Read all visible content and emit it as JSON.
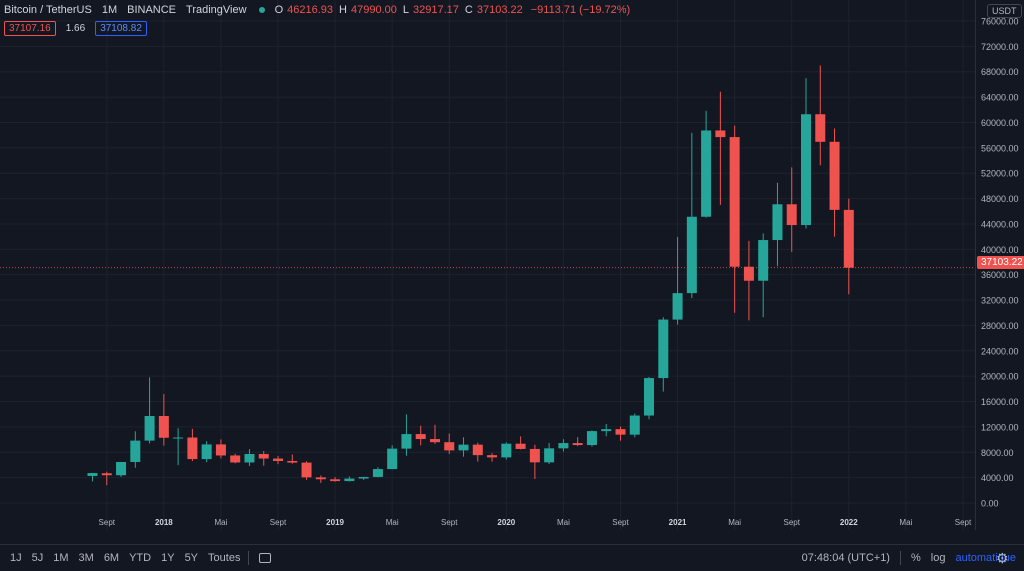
{
  "legend": {
    "symbol": "Bitcoin / TetherUS",
    "interval": "1M",
    "exchange": "BINANCE",
    "source": "TradingView",
    "o_label": "O",
    "o_value": "46216.93",
    "h_label": "H",
    "h_value": "47990.00",
    "l_label": "L",
    "l_value": "32917.17",
    "c_label": "C",
    "c_value": "37103.22",
    "change": "−9113.71 (−19.72%)"
  },
  "badges": {
    "bid": "37107.16",
    "spread": "1.66",
    "ask": "37108.82"
  },
  "currency": "USDT",
  "current_price": "37103.22",
  "colors": {
    "up": "#26a69a",
    "down": "#ef5350",
    "background": "#131722",
    "grid": "#1e222d",
    "accent": "#2962ff"
  },
  "bottom_bar": {
    "ranges": [
      "1J",
      "5J",
      "1M",
      "3M",
      "6M",
      "YTD",
      "1Y",
      "5Y",
      "Toutes"
    ],
    "calendar_icon": "calendar-range-icon",
    "time": "07:48:04 (UTC+1)",
    "percent": "%",
    "log": "log",
    "auto": "automatique",
    "settings_icon": "gear-icon"
  },
  "chart_data": {
    "type": "candlestick",
    "y_ticks": [
      "0.00",
      "4000.00",
      "8000.00",
      "12000.00",
      "16000.00",
      "20000.00",
      "24000.00",
      "28000.00",
      "32000.00",
      "36000.00",
      "40000.00",
      "44000.00",
      "48000.00",
      "52000.00",
      "56000.00",
      "60000.00",
      "64000.00",
      "68000.00",
      "72000.00",
      "76000.00"
    ],
    "ylim": [
      0,
      76000
    ],
    "x_ticks": [
      {
        "i": 1,
        "label": "Sept"
      },
      {
        "i": 5,
        "label": "2018"
      },
      {
        "i": 9,
        "label": "Mai"
      },
      {
        "i": 13,
        "label": "Sept"
      },
      {
        "i": 17,
        "label": "2019"
      },
      {
        "i": 21,
        "label": "Mai"
      },
      {
        "i": 25,
        "label": "Sept"
      },
      {
        "i": 29,
        "label": "2020"
      },
      {
        "i": 33,
        "label": "Mai"
      },
      {
        "i": 37,
        "label": "Sept"
      },
      {
        "i": 41,
        "label": "2021"
      },
      {
        "i": 45,
        "label": "Mai"
      },
      {
        "i": 49,
        "label": "Sept"
      },
      {
        "i": 53,
        "label": "2022"
      },
      {
        "i": 57,
        "label": "Mai"
      },
      {
        "i": 61,
        "label": "Sept"
      }
    ],
    "first_month_index": -1,
    "ohlc": [
      [
        4261,
        4745,
        3400,
        4724
      ],
      [
        4689,
        4939,
        2817,
        4378
      ],
      [
        4378,
        6470,
        4110,
        6463
      ],
      [
        6463,
        11300,
        5550,
        9838
      ],
      [
        9838,
        19798,
        9380,
        13716
      ],
      [
        13716,
        17176,
        9035,
        10285
      ],
      [
        10285,
        11786,
        5968,
        10326
      ],
      [
        10326,
        11700,
        6600,
        6924
      ],
      [
        6924,
        9759,
        6426,
        9240
      ],
      [
        9240,
        10020,
        7032,
        7494
      ],
      [
        7494,
        7770,
        6255,
        6391
      ],
      [
        6391,
        8491,
        5826,
        7725
      ],
      [
        7725,
        8200,
        5880,
        7011
      ],
      [
        7011,
        7410,
        6123,
        6626
      ],
      [
        6626,
        7660,
        6200,
        6371
      ],
      [
        6371,
        6600,
        3652,
        4041
      ],
      [
        4041,
        4350,
        3156,
        3742
      ],
      [
        3742,
        4075,
        3349,
        3457
      ],
      [
        3457,
        4200,
        3400,
        3854
      ],
      [
        3854,
        4130,
        3650,
        4105
      ],
      [
        4105,
        5650,
        4050,
        5351
      ],
      [
        5351,
        9090,
        5330,
        8574
      ],
      [
        8574,
        13970,
        7450,
        10866
      ],
      [
        10866,
        12200,
        9100,
        10085
      ],
      [
        10085,
        12325,
        9320,
        9590
      ],
      [
        9590,
        10950,
        7740,
        8294
      ],
      [
        8294,
        10370,
        7300,
        9199
      ],
      [
        9199,
        9510,
        6526,
        7546
      ],
      [
        7546,
        7870,
        6515,
        7194
      ],
      [
        7194,
        9578,
        6870,
        9351
      ],
      [
        9351,
        10500,
        8450,
        8523
      ],
      [
        8523,
        9188,
        3782,
        6410
      ],
      [
        6410,
        9467,
        6150,
        8620
      ],
      [
        8620,
        10067,
        8117,
        9448
      ],
      [
        9448,
        10380,
        8975,
        9138
      ],
      [
        9138,
        11444,
        8893,
        11335
      ],
      [
        11335,
        12468,
        10518,
        11649
      ],
      [
        11649,
        12067,
        9825,
        10776
      ],
      [
        10776,
        14100,
        10370,
        13791
      ],
      [
        13791,
        19863,
        13195,
        19700
      ],
      [
        19700,
        29300,
        17570,
        28923
      ],
      [
        28923,
        41950,
        28130,
        33092
      ],
      [
        33092,
        58352,
        32296,
        45135
      ],
      [
        45135,
        61844,
        45000,
        58740
      ],
      [
        58740,
        64854,
        47000,
        57694
      ],
      [
        57694,
        59500,
        30000,
        37253
      ],
      [
        37253,
        41330,
        28800,
        35045
      ],
      [
        35045,
        42500,
        29296,
        41461
      ],
      [
        41461,
        50500,
        37332,
        47100
      ],
      [
        47100,
        52920,
        39600,
        43824
      ],
      [
        43824,
        66999,
        43283,
        61300
      ],
      [
        61300,
        69000,
        53256,
        56950
      ],
      [
        56950,
        59053,
        42000,
        46216
      ],
      [
        46216,
        47990,
        32917,
        37103
      ]
    ]
  }
}
